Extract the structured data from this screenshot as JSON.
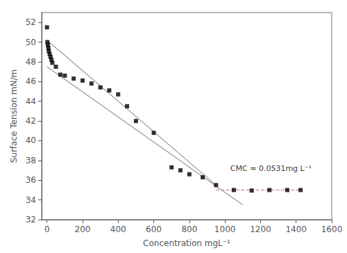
{
  "chart_data": {
    "type": "scatter",
    "xlabel": "Concentration mgL⁻¹",
    "ylabel": "Surface Tension mN/m",
    "series": [
      {
        "type": "scatter",
        "marker": "square",
        "color": "black",
        "x": [
          0,
          2,
          5,
          8,
          10,
          15,
          20,
          25,
          30,
          50,
          75,
          100,
          150,
          200,
          250,
          300,
          350,
          400,
          450,
          500,
          600,
          700,
          750,
          800,
          875,
          950,
          1050,
          1150,
          1250,
          1350,
          1425
        ],
        "values": [
          51.5,
          50.0,
          49.7,
          49.4,
          49.1,
          48.8,
          48.5,
          48.2,
          47.9,
          47.5,
          46.7,
          46.6,
          46.3,
          46.1,
          45.8,
          45.4,
          45.1,
          44.7,
          43.5,
          42.0,
          40.8,
          37.3,
          37.0,
          36.6,
          36.3,
          35.5,
          35.0,
          34.95,
          35.0,
          35.0,
          35.0
        ]
      },
      {
        "type": "line",
        "color": "#999999",
        "line_style": "solid",
        "x": [
          0,
          950
        ],
        "values": [
          50.2,
          35.5
        ]
      },
      {
        "type": "line",
        "color": "#999999",
        "line_style": "solid",
        "x": [
          0,
          1100
        ],
        "values": [
          47.5,
          33.5
        ]
      },
      {
        "type": "line",
        "color": "#cc8888",
        "line_style": "dashed",
        "x": [
          950,
          1425
        ],
        "values": [
          35.0,
          35.0
        ]
      }
    ],
    "annotations": [
      {
        "text": "CMC = 0.0531mg L⁻¹",
        "x": 1030,
        "y": 37.2
      }
    ],
    "xlim": [
      -30,
      1600
    ],
    "ylim": [
      32,
      53
    ],
    "xticks": [
      0,
      200,
      400,
      600,
      800,
      1000,
      1200,
      1400,
      1600
    ],
    "yticks": [
      32,
      34,
      36,
      38,
      40,
      42,
      44,
      46,
      48,
      50,
      52
    ],
    "grid": false
  }
}
